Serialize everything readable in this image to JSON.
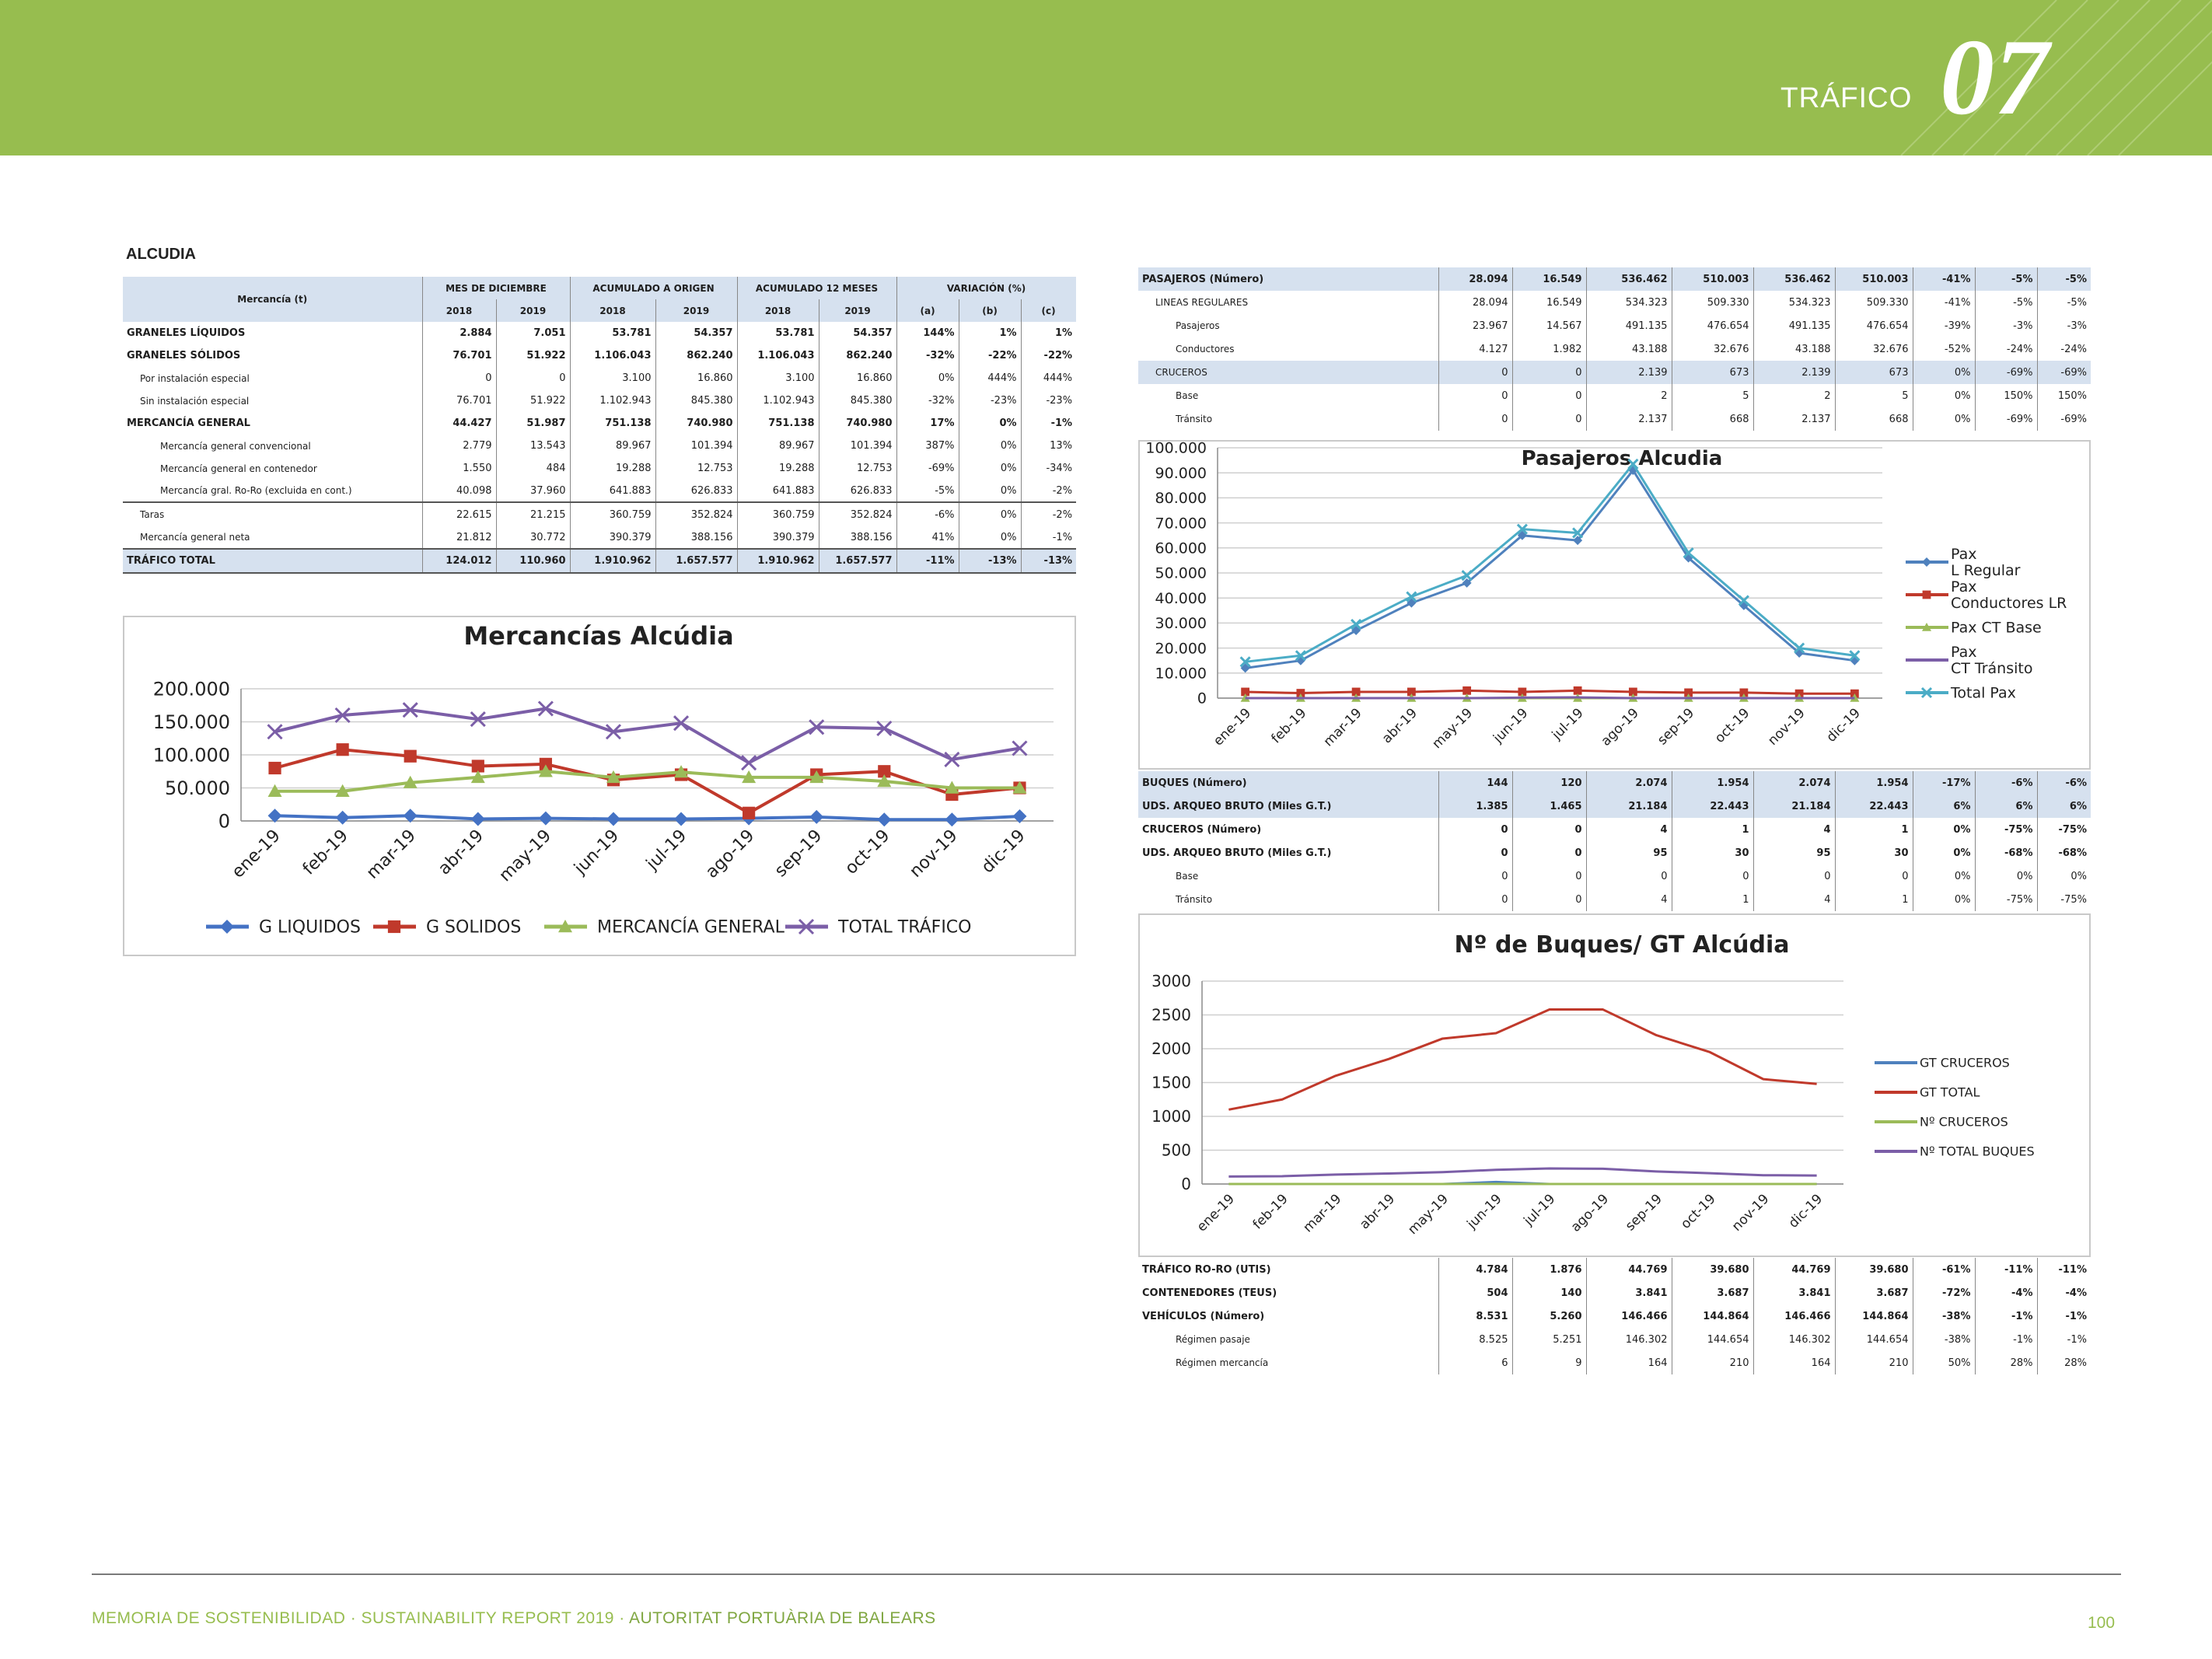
{
  "header": {
    "section": "TRÁFICO",
    "chapter": "07"
  },
  "left_table": {
    "title": "ALCUDIA",
    "merc_header": "Mercancía (t)",
    "groups": [
      "MES DE DICIEMBRE",
      "ACUMULADO A ORIGEN",
      "ACUMULADO 12 MESES",
      "VARIACIÓN (%)"
    ],
    "years": [
      "2018",
      "2019",
      "2018",
      "2019",
      "2018",
      "2019",
      "(a)",
      "(b)",
      "(c)"
    ],
    "rows": [
      {
        "label": "GRANELES LÍQUIDOS",
        "v": [
          "2.884",
          "7.051",
          "53.781",
          "54.357",
          "53.781",
          "54.357",
          "144%",
          "1%",
          "1%"
        ]
      },
      {
        "label": "GRANELES SÓLIDOS",
        "v": [
          "76.701",
          "51.922",
          "1.106.043",
          "862.240",
          "1.106.043",
          "862.240",
          "-32%",
          "-22%",
          "-22%"
        ]
      },
      {
        "label": "Por instalación especial",
        "v": [
          "0",
          "0",
          "3.100",
          "16.860",
          "3.100",
          "16.860",
          "0%",
          "444%",
          "444%"
        ]
      },
      {
        "label": "Sin instalación especial",
        "v": [
          "76.701",
          "51.922",
          "1.102.943",
          "845.380",
          "1.102.943",
          "845.380",
          "-32%",
          "-23%",
          "-23%"
        ]
      },
      {
        "label": "MERCANCÍA GENERAL",
        "v": [
          "44.427",
          "51.987",
          "751.138",
          "740.980",
          "751.138",
          "740.980",
          "17%",
          "0%",
          "-1%"
        ]
      },
      {
        "label": "Mercancía general convencional",
        "v": [
          "2.779",
          "13.543",
          "89.967",
          "101.394",
          "89.967",
          "101.394",
          "387%",
          "0%",
          "13%"
        ]
      },
      {
        "label": "Mercancía general en contenedor",
        "v": [
          "1.550",
          "484",
          "19.288",
          "12.753",
          "19.288",
          "12.753",
          "-69%",
          "0%",
          "-34%"
        ]
      },
      {
        "label": "Mercancía gral. Ro-Ro (excluida en cont.)",
        "v": [
          "40.098",
          "37.960",
          "641.883",
          "626.833",
          "641.883",
          "626.833",
          "-5%",
          "0%",
          "-2%"
        ]
      },
      {
        "label": "Taras",
        "v": [
          "22.615",
          "21.215",
          "360.759",
          "352.824",
          "360.759",
          "352.824",
          "-6%",
          "0%",
          "-2%"
        ]
      },
      {
        "label": "Mercancía general neta",
        "v": [
          "21.812",
          "30.772",
          "390.379",
          "388.156",
          "390.379",
          "388.156",
          "41%",
          "0%",
          "-1%"
        ]
      },
      {
        "label": "TRÁFICO TOTAL",
        "v": [
          "124.012",
          "110.960",
          "1.910.962",
          "1.657.577",
          "1.910.962",
          "1.657.577",
          "-11%",
          "-13%",
          "-13%"
        ]
      }
    ]
  },
  "pasajeros_table": {
    "rows": [
      {
        "label": "PASAJEROS (Número)",
        "v": [
          "28.094",
          "16.549",
          "536.462",
          "510.003",
          "536.462",
          "510.003",
          "-41%",
          "-5%",
          "-5%"
        ]
      },
      {
        "label": "LINEAS REGULARES",
        "v": [
          "28.094",
          "16.549",
          "534.323",
          "509.330",
          "534.323",
          "509.330",
          "-41%",
          "-5%",
          "-5%"
        ]
      },
      {
        "label": "Pasajeros",
        "v": [
          "23.967",
          "14.567",
          "491.135",
          "476.654",
          "491.135",
          "476.654",
          "-39%",
          "-3%",
          "-3%"
        ]
      },
      {
        "label": "Conductores",
        "v": [
          "4.127",
          "1.982",
          "43.188",
          "32.676",
          "43.188",
          "32.676",
          "-52%",
          "-24%",
          "-24%"
        ]
      },
      {
        "label": "CRUCEROS",
        "v": [
          "0",
          "0",
          "2.139",
          "673",
          "2.139",
          "673",
          "0%",
          "-69%",
          "-69%"
        ]
      },
      {
        "label": "Base",
        "v": [
          "0",
          "0",
          "2",
          "5",
          "2",
          "5",
          "0%",
          "150%",
          "150%"
        ]
      },
      {
        "label": "Tránsito",
        "v": [
          "0",
          "0",
          "2.137",
          "668",
          "2.137",
          "668",
          "0%",
          "-69%",
          "-69%"
        ]
      }
    ]
  },
  "buques_table": {
    "rows": [
      {
        "label": "BUQUES (Número)",
        "v": [
          "144",
          "120",
          "2.074",
          "1.954",
          "2.074",
          "1.954",
          "-17%",
          "-6%",
          "-6%"
        ]
      },
      {
        "label": "UDS. ARQUEO BRUTO (Miles G.T.)",
        "v": [
          "1.385",
          "1.465",
          "21.184",
          "22.443",
          "21.184",
          "22.443",
          "6%",
          "6%",
          "6%"
        ]
      },
      {
        "label": "CRUCEROS (Número)",
        "v": [
          "0",
          "0",
          "4",
          "1",
          "4",
          "1",
          "0%",
          "-75%",
          "-75%"
        ]
      },
      {
        "label": "UDS. ARQUEO BRUTO (Miles G.T.)",
        "v": [
          "0",
          "0",
          "95",
          "30",
          "95",
          "30",
          "0%",
          "-68%",
          "-68%"
        ]
      },
      {
        "label": "Base",
        "v": [
          "0",
          "0",
          "0",
          "0",
          "0",
          "0",
          "0%",
          "0%",
          "0%"
        ]
      },
      {
        "label": "Tránsito",
        "v": [
          "0",
          "0",
          "4",
          "1",
          "4",
          "1",
          "0%",
          "-75%",
          "-75%"
        ]
      }
    ]
  },
  "roro_table": {
    "rows": [
      {
        "label": "TRÁFICO RO-RO (UTIS)",
        "v": [
          "4.784",
          "1.876",
          "44.769",
          "39.680",
          "44.769",
          "39.680",
          "-61%",
          "-11%",
          "-11%"
        ]
      },
      {
        "label": "CONTENEDORES (TEUS)",
        "v": [
          "504",
          "140",
          "3.841",
          "3.687",
          "3.841",
          "3.687",
          "-72%",
          "-4%",
          "-4%"
        ]
      },
      {
        "label": "VEHÍCULOS (Número)",
        "v": [
          "8.531",
          "5.260",
          "146.466",
          "144.864",
          "146.466",
          "144.864",
          "-38%",
          "-1%",
          "-1%"
        ]
      },
      {
        "label": "Régimen pasaje",
        "v": [
          "8.525",
          "5.251",
          "146.302",
          "144.654",
          "146.302",
          "144.654",
          "-38%",
          "-1%",
          "-1%"
        ]
      },
      {
        "label": "Régimen mercancía",
        "v": [
          "6",
          "9",
          "164",
          "210",
          "164",
          "210",
          "50%",
          "28%",
          "28%"
        ]
      }
    ]
  },
  "chart_data": [
    {
      "type": "line",
      "title": "Mercancías Alcúdia",
      "categories": [
        "ene-19",
        "feb-19",
        "mar-19",
        "abr-19",
        "may-19",
        "jun-19",
        "jul-19",
        "ago-19",
        "sep-19",
        "oct-19",
        "nov-19",
        "dic-19"
      ],
      "yticks": [
        "200.000",
        "150.000",
        "100.000",
        "50.000",
        "0"
      ],
      "ylim": [
        0,
        200000
      ],
      "legend_position": "bottom",
      "series": [
        {
          "name": "G LIQUIDOS",
          "color": "#4472c4",
          "marker": "diamond",
          "values": [
            8000,
            5000,
            8000,
            3000,
            4000,
            3000,
            3000,
            4000,
            6000,
            2000,
            2000,
            7000
          ]
        },
        {
          "name": "G SOLIDOS",
          "color": "#c0392b",
          "marker": "square",
          "values": [
            80000,
            108000,
            98000,
            83000,
            86000,
            62000,
            70000,
            12000,
            70000,
            75000,
            40000,
            50000
          ]
        },
        {
          "name": "MERCANCÍA GENERAL",
          "color": "#9bbb59",
          "marker": "triangle",
          "values": [
            45000,
            45000,
            58000,
            66000,
            75000,
            66000,
            74000,
            66000,
            66000,
            60000,
            50000,
            50000
          ]
        },
        {
          "name": "TOTAL TRÁFICO",
          "color": "#7b5ea7",
          "marker": "x",
          "values": [
            135000,
            160000,
            168000,
            154000,
            170000,
            135000,
            148000,
            88000,
            142000,
            140000,
            93000,
            110000
          ]
        }
      ]
    },
    {
      "type": "line",
      "title": "Pasajeros Alcudia",
      "categories": [
        "ene-19",
        "feb-19",
        "mar-19",
        "abr-19",
        "may-19",
        "jun-19",
        "jul-19",
        "ago-19",
        "sep-19",
        "oct-19",
        "nov-19",
        "dic-19"
      ],
      "yticks": [
        "100.000",
        "90.000",
        "80.000",
        "70.000",
        "60.000",
        "50.000",
        "40.000",
        "30.000",
        "20.000",
        "10.000",
        "0"
      ],
      "ylim": [
        0,
        100000
      ],
      "legend_position": "right",
      "series": [
        {
          "name": "Pax L Regular",
          "color": "#4f81bd",
          "marker": "diamond",
          "values": [
            12000,
            15000,
            27000,
            38000,
            46000,
            65000,
            63000,
            91000,
            56000,
            37000,
            18000,
            15000
          ]
        },
        {
          "name": "Pax Conductores LR",
          "color": "#c0392b",
          "marker": "square",
          "values": [
            2500,
            2000,
            2500,
            2500,
            3000,
            2500,
            3000,
            2500,
            2200,
            2200,
            1800,
            1800
          ]
        },
        {
          "name": "Pax CT Base",
          "color": "#9bbb59",
          "marker": "triangle",
          "values": [
            0,
            0,
            0,
            0,
            0,
            0,
            0,
            0,
            0,
            0,
            0,
            0
          ]
        },
        {
          "name": "Pax CT Tránsito",
          "color": "#7b5ea7",
          "marker": "none",
          "values": [
            0,
            0,
            0,
            0,
            0,
            200,
            300,
            0,
            0,
            0,
            0,
            0
          ]
        },
        {
          "name": "Total Pax",
          "color": "#4bacc6",
          "marker": "x",
          "values": [
            14500,
            17000,
            29500,
            40500,
            49000,
            67500,
            66000,
            93500,
            58000,
            39000,
            20000,
            17000
          ]
        }
      ]
    },
    {
      "type": "line",
      "title": "Nº de Buques/ GT Alcúdia",
      "categories": [
        "ene-19",
        "feb-19",
        "mar-19",
        "abr-19",
        "may-19",
        "jun-19",
        "jul-19",
        "ago-19",
        "sep-19",
        "oct-19",
        "nov-19",
        "dic-19"
      ],
      "yticks": [
        "3000",
        "2500",
        "2000",
        "1500",
        "1000",
        "500",
        "0"
      ],
      "ylim": [
        0,
        3000
      ],
      "legend_position": "right",
      "series": [
        {
          "name": "GT CRUCEROS",
          "color": "#4f81bd",
          "marker": "none",
          "values": [
            0,
            0,
            0,
            0,
            0,
            30,
            0,
            0,
            0,
            0,
            0,
            0
          ]
        },
        {
          "name": "GT TOTAL",
          "color": "#c0392b",
          "marker": "none",
          "values": [
            1100,
            1250,
            1600,
            1850,
            2150,
            2230,
            2580,
            2580,
            2200,
            1950,
            1550,
            1480
          ]
        },
        {
          "name": "Nº CRUCEROS",
          "color": "#9bbb59",
          "marker": "none",
          "values": [
            0,
            0,
            0,
            0,
            0,
            1,
            0,
            0,
            0,
            0,
            0,
            0
          ]
        },
        {
          "name": "Nº TOTAL BUQUES",
          "color": "#7b5ea7",
          "marker": "none",
          "values": [
            110,
            115,
            140,
            155,
            175,
            210,
            230,
            225,
            185,
            160,
            130,
            125
          ]
        }
      ]
    }
  ],
  "footer": {
    "text_main": "MEMORIA DE SOSTENIBILIDAD · SUSTAINABILITY REPORT 2019 · ",
    "text_org": "AUTORITAT PORTUÀRIA DE BALEARS",
    "page": "100"
  }
}
